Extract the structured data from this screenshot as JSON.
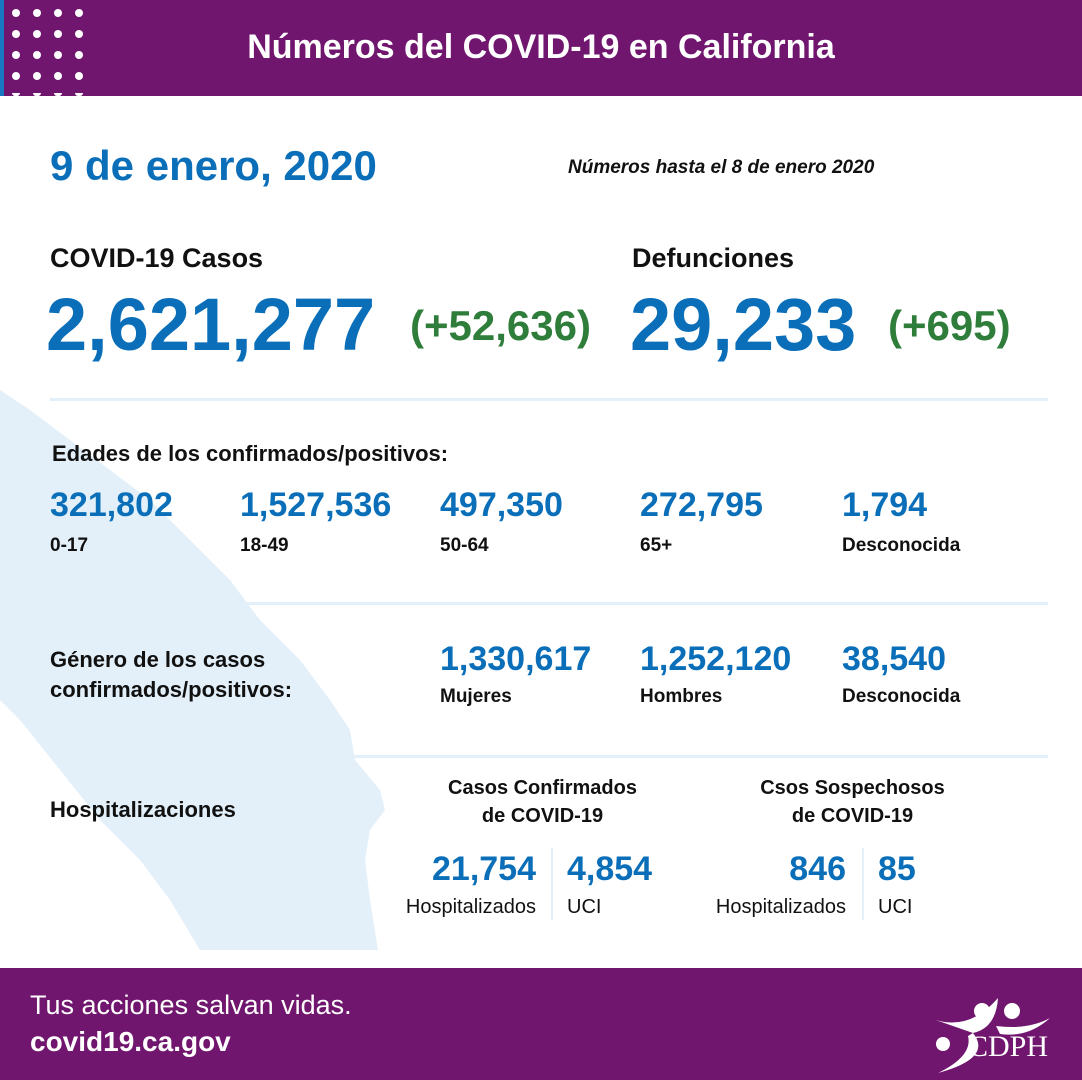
{
  "header": {
    "title": "Números del COVID-19 en California"
  },
  "date": "9 de enero, 2020",
  "as_of": "Números hasta el 8 de enero 2020",
  "cases": {
    "label": "COVID-19 Casos",
    "value": "2,621,277",
    "change": "(+52,636)"
  },
  "deaths": {
    "label": "Defunciones",
    "value": "29,233",
    "change": "(+695)"
  },
  "ages": {
    "title": "Edades de los confirmados/positivos:",
    "items": [
      {
        "value": "321,802",
        "label": "0-17"
      },
      {
        "value": "1,527,536",
        "label": "18-49"
      },
      {
        "value": "497,350",
        "label": "50-64"
      },
      {
        "value": "272,795",
        "label": "65+"
      },
      {
        "value": "1,794",
        "label": "Desconocida"
      }
    ]
  },
  "gender": {
    "title_line1": "Género de los casos",
    "title_line2": "confirmados/positivos:",
    "items": [
      {
        "value": "1,330,617",
        "label": "Mujeres"
      },
      {
        "value": "1,252,120",
        "label": "Hombres"
      },
      {
        "value": "38,540",
        "label": "Desconocida"
      }
    ]
  },
  "hosp": {
    "title": "Hospitalizaciones",
    "confirmed": {
      "line1": "Casos Confirmados",
      "line2": "de COVID-19",
      "hosp_value": "21,754",
      "hosp_label": "Hospitalizados",
      "icu_value": "4,854",
      "icu_label": "UCI"
    },
    "suspected": {
      "line1": "Csos Sospechosos",
      "line2": "de COVID-19",
      "hosp_value": "846",
      "hosp_label": "Hospitalizados",
      "icu_value": "85",
      "icu_label": "UCI"
    }
  },
  "footer": {
    "tagline": "Tus acciones salvan vidas.",
    "url": "covid19.ca.gov",
    "logo_text": "CDPH"
  },
  "colors": {
    "purple": "#71166e",
    "blue": "#0a6fb8",
    "green": "#2e7d3a",
    "map": "#e3f0fa"
  }
}
